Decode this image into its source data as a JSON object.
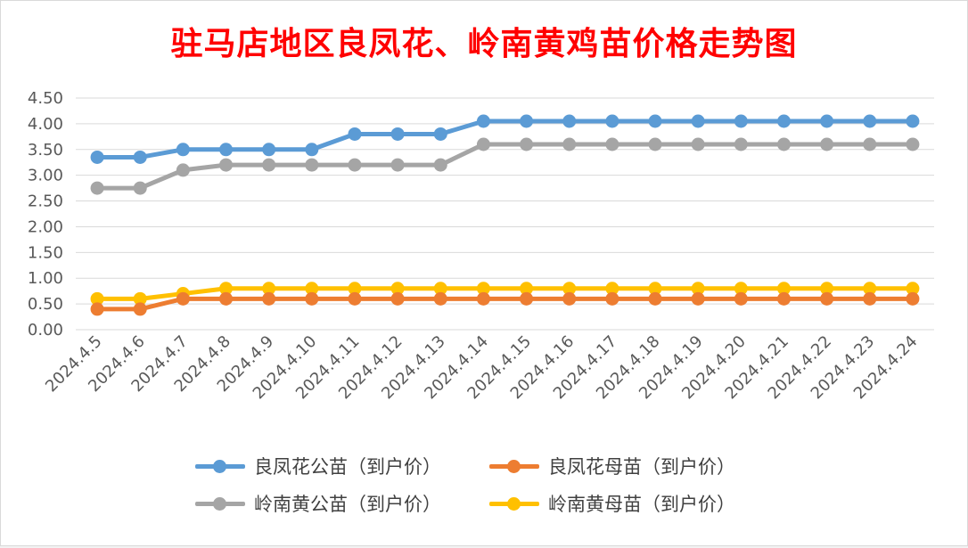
{
  "chart_data": {
    "type": "line",
    "title": "驻马店地区良凤花、岭南黄鸡苗价格走势图",
    "categories": [
      "2024.4.5",
      "2024.4.6",
      "2024.4.7",
      "2024.4.8",
      "2024.4.9",
      "2024.4.10",
      "2024.4.11",
      "2024.4.12",
      "2024.4.13",
      "2024.4.14",
      "2024.4.15",
      "2024.4.16",
      "2024.4.17",
      "2024.4.18",
      "2024.4.19",
      "2024.4.20",
      "2024.4.21",
      "2024.4.22",
      "2024.4.23",
      "2024.4.24"
    ],
    "ylim": [
      0,
      4.5
    ],
    "yticks": [
      "0.00",
      "0.50",
      "1.00",
      "1.50",
      "2.00",
      "2.50",
      "3.00",
      "3.50",
      "4.00",
      "4.50"
    ],
    "grid": true,
    "legend_position": "bottom",
    "series": [
      {
        "name": "良凤花公苗（到户价）",
        "color": "#5b9bd5",
        "values": [
          3.35,
          3.35,
          3.5,
          3.5,
          3.5,
          3.5,
          3.8,
          3.8,
          3.8,
          4.05,
          4.05,
          4.05,
          4.05,
          4.05,
          4.05,
          4.05,
          4.05,
          4.05,
          4.05,
          4.05
        ]
      },
      {
        "name": "良凤花母苗（到户价）",
        "color": "#ed7d31",
        "values": [
          0.4,
          0.4,
          0.6,
          0.6,
          0.6,
          0.6,
          0.6,
          0.6,
          0.6,
          0.6,
          0.6,
          0.6,
          0.6,
          0.6,
          0.6,
          0.6,
          0.6,
          0.6,
          0.6,
          0.6
        ]
      },
      {
        "name": "岭南黄公苗（到户价）",
        "color": "#a5a5a5",
        "values": [
          2.75,
          2.75,
          3.1,
          3.2,
          3.2,
          3.2,
          3.2,
          3.2,
          3.2,
          3.6,
          3.6,
          3.6,
          3.6,
          3.6,
          3.6,
          3.6,
          3.6,
          3.6,
          3.6,
          3.6
        ]
      },
      {
        "name": "岭南黄母苗（到户价）",
        "color": "#ffc000",
        "values": [
          0.6,
          0.6,
          0.7,
          0.8,
          0.8,
          0.8,
          0.8,
          0.8,
          0.8,
          0.8,
          0.8,
          0.8,
          0.8,
          0.8,
          0.8,
          0.8,
          0.8,
          0.8,
          0.8,
          0.8
        ]
      }
    ]
  }
}
